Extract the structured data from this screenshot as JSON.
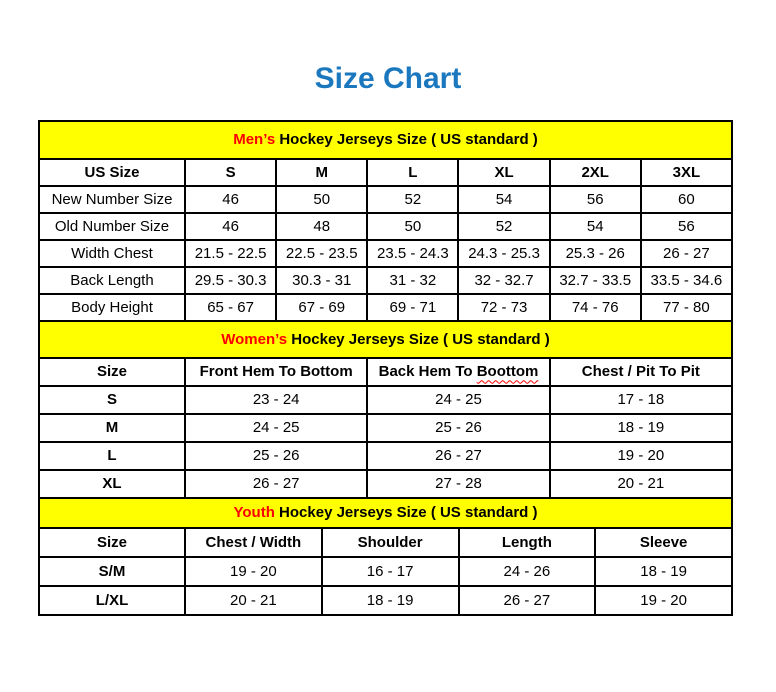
{
  "page": {
    "title": "Size Chart"
  },
  "colors": {
    "title_blue": "#1B78BE",
    "band_yellow": "#FFFF00",
    "accent_red": "#FF0000",
    "border_black": "#000000"
  },
  "sections": {
    "mens": {
      "band": {
        "highlight": "Men’s",
        "rest": " Hockey Jerseys Size ( US standard )"
      },
      "columns": [
        "US Size",
        "S",
        "M",
        "L",
        "XL",
        "2XL",
        "3XL"
      ],
      "rows": [
        {
          "label": "New Number Size",
          "values": [
            "46",
            "50",
            "52",
            "54",
            "56",
            "60"
          ]
        },
        {
          "label": "Old Number Size",
          "values": [
            "46",
            "48",
            "50",
            "52",
            "54",
            "56"
          ]
        },
        {
          "label": "Width Chest",
          "values": [
            "21.5 - 22.5",
            "22.5 - 23.5",
            "23.5 - 24.3",
            "24.3 - 25.3",
            "25.3 - 26",
            "26 - 27"
          ]
        },
        {
          "label": "Back Length",
          "values": [
            "29.5 - 30.3",
            "30.3 - 31",
            "31 - 32",
            "32 - 32.7",
            "32.7 - 33.5",
            "33.5 - 34.6"
          ]
        },
        {
          "label": "Body Height",
          "values": [
            "65 - 67",
            "67 - 69",
            "69 - 71",
            "72 - 73",
            "74 - 76",
            "77 - 80"
          ]
        }
      ]
    },
    "womens": {
      "band": {
        "highlight": "Women’s",
        "rest": " Hockey Jerseys Size ( US standard )"
      },
      "columns": {
        "c0": "Size",
        "c1": "Front Hem To Bottom",
        "c2": {
          "prefix": "Back Hem To ",
          "misspelled_word": "Boottom"
        },
        "c3": "Chest / Pit To Pit"
      },
      "rows": [
        {
          "label": "S",
          "values": [
            "23 - 24",
            "24 - 25",
            "17 - 18"
          ]
        },
        {
          "label": "M",
          "values": [
            "24 - 25",
            "25 - 26",
            "18 - 19"
          ]
        },
        {
          "label": "L",
          "values": [
            "25 - 26",
            "26 - 27",
            "19 - 20"
          ]
        },
        {
          "label": "XL",
          "values": [
            "26 - 27",
            "27 - 28",
            "20 - 21"
          ]
        }
      ]
    },
    "youth": {
      "band": {
        "highlight": "Youth",
        "rest": " Hockey Jerseys Size ( US standard )"
      },
      "columns": [
        "Size",
        "Chest / Width",
        "Shoulder",
        "Length",
        "Sleeve"
      ],
      "rows": [
        {
          "label": "S/M",
          "values": [
            "19 - 20",
            "16 - 17",
            "24 - 26",
            "18 - 19"
          ]
        },
        {
          "label": "L/XL",
          "values": [
            "20 - 21",
            "18 - 19",
            "26 - 27",
            "19 - 20"
          ]
        }
      ]
    }
  }
}
